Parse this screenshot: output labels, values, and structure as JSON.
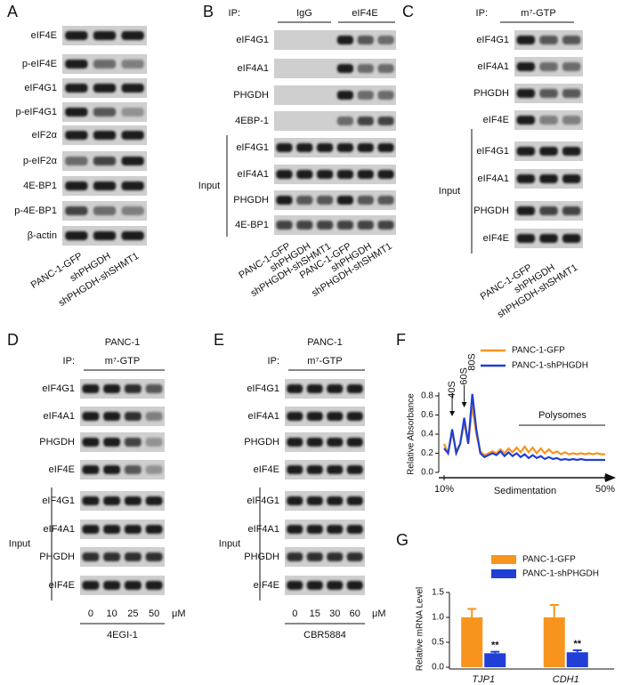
{
  "panels": {
    "A": {
      "letter": "A",
      "rows": [
        "eIF4E",
        "p-eIF4E",
        "eIF4G1",
        "p-eIF4G1",
        "eIF2α",
        "p-eIF2α",
        "4E-BP1",
        "p-4E-BP1",
        "β-actin"
      ],
      "lanes": [
        "PANC-1-GFP",
        "shPHGDH",
        "shPHGDH-shSHMT1"
      ]
    },
    "B": {
      "letter": "B",
      "ip_label": "IP:",
      "groups": [
        "IgG",
        "eIF4E"
      ],
      "ip_rows": [
        "eIF4G1",
        "eIF4A1",
        "PHGDH",
        "4EBP-1"
      ],
      "input_label": "Input",
      "input_rows": [
        "eIF4G1",
        "eIF4A1",
        "PHGDH",
        "4E-BP1"
      ],
      "lanes": [
        "PANC-1-GFP",
        "shPHGDH",
        "shPHGDH-shSHMT1",
        "PANC-1-GFP",
        "shPHGDH",
        "shPHGDH-shSHMT1"
      ]
    },
    "C": {
      "letter": "C",
      "ip_label": "IP:",
      "ip_target": "m⁷-GTP",
      "ip_rows": [
        "eIF4G1",
        "eIF4A1",
        "PHGDH",
        "eIF4E"
      ],
      "input_label": "Input",
      "input_rows": [
        "eIF4G1",
        "eIF4A1",
        "PHGDH",
        "eIF4E"
      ],
      "lanes": [
        "PANC-1-GFP",
        "shPHGDH",
        "shPHGDH-shSHMT1"
      ]
    },
    "D": {
      "letter": "D",
      "cell_line": "PANC-1",
      "ip_label": "IP:",
      "ip_target": "m⁷-GTP",
      "ip_rows": [
        "eIF4G1",
        "eIF4A1",
        "PHGDH",
        "eIF4E"
      ],
      "input_label": "Input",
      "input_rows": [
        "eIF4G1",
        "eIF4A1",
        "PHGDH",
        "eIF4E"
      ],
      "doses": [
        "0",
        "10",
        "25",
        "50"
      ],
      "unit": "μM",
      "drug": "4EGI-1"
    },
    "E": {
      "letter": "E",
      "cell_line": "PANC-1",
      "ip_label": "IP:",
      "ip_target": "m⁷-GTP",
      "ip_rows": [
        "eIF4G1",
        "eIF4A1",
        "PHGDH",
        "eIF4E"
      ],
      "input_label": "Input",
      "input_rows": [
        "eIF4G1",
        "eIF4A1",
        "PHGDH",
        "eIF4E"
      ],
      "doses": [
        "0",
        "15",
        "30",
        "60"
      ],
      "unit": "μM",
      "drug": "CBR5884"
    }
  },
  "chart_data": [
    {
      "type": "line",
      "panel_label": "F",
      "ylabel": "Relative Absorbance",
      "xlabel": "Sedimentation",
      "annotations": [
        "40S",
        "60S",
        "80S",
        "Polysomes"
      ],
      "legend": "upper right",
      "x": [
        10,
        11,
        12,
        13,
        14,
        15,
        16,
        17,
        18,
        19,
        20,
        21,
        22,
        23,
        24,
        25,
        26,
        27,
        28,
        29,
        30,
        31,
        32,
        33,
        34,
        35,
        36,
        37,
        38,
        39,
        40,
        41,
        42,
        43,
        44,
        45,
        46,
        47,
        48,
        49,
        50
      ],
      "xlim": [
        10,
        50
      ],
      "xticks": [
        {
          "value": 10,
          "label": "10%"
        },
        {
          "value": 50,
          "label": "50%"
        }
      ],
      "ylim": [
        0,
        0.8
      ],
      "yticks": [
        {
          "value": 0,
          "label": "0.0"
        },
        0.2,
        0.4,
        0.6,
        0.8
      ],
      "series": [
        {
          "name": "PANC-1-GFP",
          "color": "#f7941d",
          "values": [
            0.3,
            0.2,
            0.42,
            0.22,
            0.3,
            0.52,
            0.3,
            0.7,
            0.4,
            0.22,
            0.18,
            0.2,
            0.22,
            0.2,
            0.24,
            0.2,
            0.25,
            0.21,
            0.26,
            0.21,
            0.27,
            0.21,
            0.26,
            0.2,
            0.25,
            0.2,
            0.24,
            0.2,
            0.22,
            0.19,
            0.21,
            0.19,
            0.2,
            0.19,
            0.2,
            0.19,
            0.2,
            0.19,
            0.2,
            0.19,
            0.19
          ]
        },
        {
          "name": "PANC-1-shPHGDH",
          "color": "#1f3fd6",
          "values": [
            0.25,
            0.2,
            0.45,
            0.2,
            0.3,
            0.57,
            0.3,
            0.82,
            0.45,
            0.2,
            0.16,
            0.18,
            0.2,
            0.18,
            0.22,
            0.17,
            0.21,
            0.17,
            0.2,
            0.16,
            0.19,
            0.15,
            0.18,
            0.15,
            0.17,
            0.14,
            0.16,
            0.14,
            0.15,
            0.13,
            0.14,
            0.13,
            0.14,
            0.13,
            0.14,
            0.13,
            0.13,
            0.13,
            0.13,
            0.13,
            0.13
          ]
        }
      ]
    },
    {
      "type": "bar",
      "panel_label": "G",
      "ylabel": "Relative mRNA Level",
      "categories": [
        "TJP1",
        "CDH1"
      ],
      "ylim": [
        0,
        1.5
      ],
      "yticks": [
        {
          "value": 0,
          "label": "0.0"
        },
        0.5,
        {
          "value": 1,
          "label": "1.0"
        },
        1.5
      ],
      "series": [
        {
          "name": "PANC-1-GFP",
          "color": "#f7941d",
          "values": [
            1.0,
            1.0
          ],
          "errors": [
            0.17,
            0.25
          ]
        },
        {
          "name": "PANC-1-shPHGDH",
          "color": "#1f3fd6",
          "values": [
            0.28,
            0.3
          ],
          "errors": [
            0.03,
            0.04
          ],
          "annotations": [
            "**",
            "**"
          ]
        }
      ]
    }
  ]
}
